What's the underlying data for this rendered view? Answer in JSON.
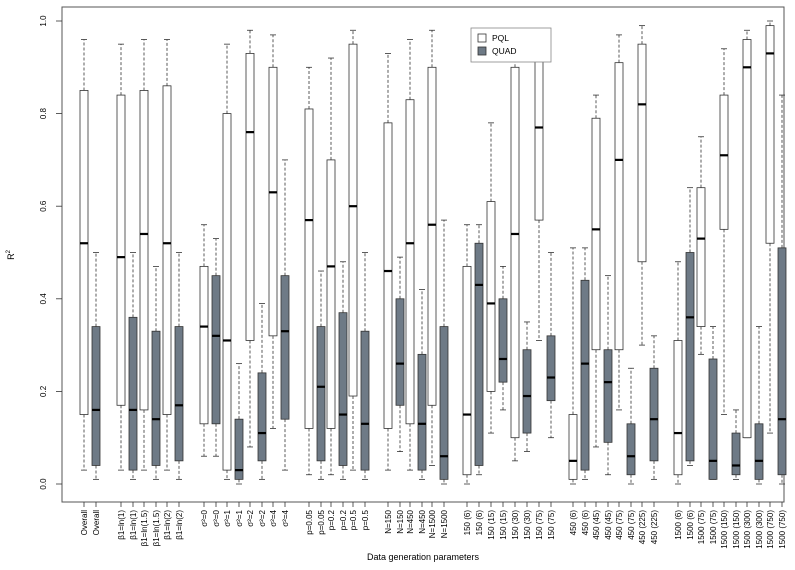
{
  "chart_data": {
    "type": "boxplot",
    "xlabel": "Data generation parameters",
    "ylabel": "R",
    "ylabel_sup": "2",
    "ylim": [
      0,
      1
    ],
    "yticks": [
      "0.0",
      "0.2",
      "0.4",
      "0.6",
      "0.8",
      "1.0"
    ],
    "legend": {
      "position": "top-center",
      "entries": [
        {
          "name": "PQL",
          "color": "#ffffff"
        },
        {
          "name": "QUAD",
          "color": "#6e7a86"
        }
      ]
    },
    "groups": [
      {
        "label": "Overall",
        "pql": {
          "min": 0.03,
          "q1": 0.15,
          "median": 0.52,
          "q3": 0.85,
          "max": 0.96
        },
        "quad": {
          "min": 0.01,
          "q1": 0.04,
          "median": 0.16,
          "q3": 0.34,
          "max": 0.5
        }
      },
      {
        "label": "β1=ln(1)",
        "pql": {
          "min": 0.03,
          "q1": 0.17,
          "median": 0.49,
          "q3": 0.84,
          "max": 0.95
        },
        "quad": {
          "min": 0.01,
          "q1": 0.03,
          "median": 0.16,
          "q3": 0.36,
          "max": 0.5
        }
      },
      {
        "label": "β1=ln(1.5)",
        "pql": {
          "min": 0.03,
          "q1": 0.16,
          "median": 0.54,
          "q3": 0.85,
          "max": 0.96
        },
        "quad": {
          "min": 0.01,
          "q1": 0.04,
          "median": 0.14,
          "q3": 0.33,
          "max": 0.47
        }
      },
      {
        "label": "β1=ln(2)",
        "pql": {
          "min": 0.03,
          "q1": 0.15,
          "median": 0.52,
          "q3": 0.86,
          "max": 0.96
        },
        "quad": {
          "min": 0.01,
          "q1": 0.05,
          "median": 0.17,
          "q3": 0.34,
          "max": 0.5
        }
      },
      {
        "label": "σ²=0",
        "pql": {
          "min": 0.06,
          "q1": 0.13,
          "median": 0.34,
          "q3": 0.47,
          "max": 0.56
        },
        "quad": {
          "min": 0.06,
          "q1": 0.13,
          "median": 0.32,
          "q3": 0.45,
          "max": 0.53
        }
      },
      {
        "label": "σ²=1",
        "pql": {
          "min": 0.01,
          "q1": 0.03,
          "median": 0.31,
          "q3": 0.8,
          "max": 0.95
        },
        "quad": {
          "min": 0.0,
          "q1": 0.01,
          "median": 0.03,
          "q3": 0.14,
          "max": 0.26
        }
      },
      {
        "label": "σ²=2",
        "pql": {
          "min": 0.08,
          "q1": 0.31,
          "median": 0.76,
          "q3": 0.93,
          "max": 0.98
        },
        "quad": {
          "min": 0.01,
          "q1": 0.05,
          "median": 0.11,
          "q3": 0.24,
          "max": 0.39
        }
      },
      {
        "label": "σ²=4",
        "pql": {
          "min": 0.12,
          "q1": 0.32,
          "median": 0.63,
          "q3": 0.9,
          "max": 0.97
        },
        "quad": {
          "min": 0.03,
          "q1": 0.14,
          "median": 0.33,
          "q3": 0.45,
          "max": 0.7
        }
      },
      {
        "label": "p=0.05",
        "pql": {
          "min": 0.02,
          "q1": 0.12,
          "median": 0.57,
          "q3": 0.81,
          "max": 0.9
        },
        "quad": {
          "min": 0.01,
          "q1": 0.05,
          "median": 0.21,
          "q3": 0.34,
          "max": 0.46
        }
      },
      {
        "label": "p=0.2",
        "pql": {
          "min": 0.02,
          "q1": 0.12,
          "median": 0.47,
          "q3": 0.7,
          "max": 0.92
        },
        "quad": {
          "min": 0.01,
          "q1": 0.04,
          "median": 0.15,
          "q3": 0.37,
          "max": 0.48
        }
      },
      {
        "label": "p=0.5",
        "pql": {
          "min": 0.03,
          "q1": 0.19,
          "median": 0.6,
          "q3": 0.95,
          "max": 0.98
        },
        "quad": {
          "min": 0.01,
          "q1": 0.03,
          "median": 0.13,
          "q3": 0.33,
          "max": 0.5
        }
      },
      {
        "label": "N=150",
        "pql": {
          "min": 0.03,
          "q1": 0.12,
          "median": 0.46,
          "q3": 0.78,
          "max": 0.93
        },
        "quad": {
          "min": 0.07,
          "q1": 0.17,
          "median": 0.26,
          "q3": 0.4,
          "max": 0.49
        }
      },
      {
        "label": "N=450",
        "pql": {
          "min": 0.03,
          "q1": 0.13,
          "median": 0.52,
          "q3": 0.83,
          "max": 0.96
        },
        "quad": {
          "min": 0.01,
          "q1": 0.03,
          "median": 0.13,
          "q3": 0.28,
          "max": 0.42
        }
      },
      {
        "label": "N=1500",
        "pql": {
          "min": 0.04,
          "q1": 0.17,
          "median": 0.56,
          "q3": 0.9,
          "max": 0.98
        },
        "quad": {
          "min": 0.0,
          "q1": 0.01,
          "median": 0.06,
          "q3": 0.34,
          "max": 0.57
        }
      },
      {
        "label": "150 (6)",
        "pql": {
          "min": 0.0,
          "q1": 0.02,
          "median": 0.15,
          "q3": 0.47,
          "max": 0.56
        },
        "quad": {
          "min": 0.02,
          "q1": 0.04,
          "median": 0.43,
          "q3": 0.52,
          "max": 0.56
        }
      },
      {
        "label": "150 (15)",
        "pql": {
          "min": 0.11,
          "q1": 0.2,
          "median": 0.39,
          "q3": 0.61,
          "max": 0.78
        },
        "quad": {
          "min": 0.16,
          "q1": 0.22,
          "median": 0.27,
          "q3": 0.4,
          "max": 0.47
        }
      },
      {
        "label": "150 (30)",
        "pql": {
          "min": 0.05,
          "q1": 0.1,
          "median": 0.54,
          "q3": 0.9,
          "max": 0.97
        },
        "quad": {
          "min": 0.07,
          "q1": 0.11,
          "median": 0.19,
          "q3": 0.29,
          "max": 0.35
        }
      },
      {
        "label": "150 (75)",
        "pql": {
          "min": 0.31,
          "q1": 0.57,
          "median": 0.77,
          "q3": 0.93,
          "max": 0.98
        },
        "quad": {
          "min": 0.1,
          "q1": 0.18,
          "median": 0.23,
          "q3": 0.32,
          "max": 0.5
        }
      },
      {
        "label": "450 (6)",
        "pql": {
          "min": 0.0,
          "q1": 0.01,
          "median": 0.05,
          "q3": 0.15,
          "max": 0.51
        },
        "quad": {
          "min": 0.01,
          "q1": 0.03,
          "median": 0.26,
          "q3": 0.44,
          "max": 0.51
        }
      },
      {
        "label": "450 (45)",
        "pql": {
          "min": 0.08,
          "q1": 0.29,
          "median": 0.55,
          "q3": 0.79,
          "max": 0.84
        },
        "quad": {
          "min": 0.02,
          "q1": 0.09,
          "median": 0.22,
          "q3": 0.29,
          "max": 0.45
        }
      },
      {
        "label": "450 (75)",
        "pql": {
          "min": 0.16,
          "q1": 0.29,
          "median": 0.7,
          "q3": 0.91,
          "max": 0.97
        },
        "quad": {
          "min": 0.0,
          "q1": 0.02,
          "median": 0.06,
          "q3": 0.13,
          "max": 0.25
        }
      },
      {
        "label": "450 (225)",
        "pql": {
          "min": 0.3,
          "q1": 0.48,
          "median": 0.82,
          "q3": 0.95,
          "max": 0.99
        },
        "quad": {
          "min": 0.01,
          "q1": 0.05,
          "median": 0.14,
          "q3": 0.25,
          "max": 0.32
        }
      },
      {
        "label": "1500 (6)",
        "pql": {
          "min": 0.0,
          "q1": 0.02,
          "median": 0.11,
          "q3": 0.31,
          "max": 0.48
        },
        "quad": {
          "min": 0.04,
          "q1": 0.05,
          "median": 0.36,
          "q3": 0.5,
          "max": 0.64
        }
      },
      {
        "label": "1500 (75)",
        "pql": {
          "min": 0.28,
          "q1": 0.34,
          "median": 0.53,
          "q3": 0.64,
          "max": 0.75
        },
        "quad": {
          "min": 0.01,
          "q1": 0.01,
          "median": 0.05,
          "q3": 0.27,
          "max": 0.34
        }
      },
      {
        "label": "1500 (150)",
        "pql": {
          "min": 0.15,
          "q1": 0.55,
          "median": 0.71,
          "q3": 0.84,
          "max": 0.94
        },
        "quad": {
          "min": 0.01,
          "q1": 0.02,
          "median": 0.04,
          "q3": 0.11,
          "max": 0.16
        }
      },
      {
        "label": "1500 (300)",
        "pql": {
          "min": 0.1,
          "q1": 0.1,
          "median": 0.9,
          "q3": 0.96,
          "max": 0.98
        },
        "quad": {
          "min": 0.0,
          "q1": 0.01,
          "median": 0.05,
          "q3": 0.13,
          "max": 0.34
        }
      },
      {
        "label": "1500 (750)",
        "pql": {
          "min": 0.11,
          "q1": 0.52,
          "median": 0.93,
          "q3": 0.99,
          "max": 1.0
        },
        "quad": {
          "min": 0.0,
          "q1": 0.02,
          "median": 0.14,
          "q3": 0.51,
          "max": 0.84
        }
      }
    ]
  }
}
